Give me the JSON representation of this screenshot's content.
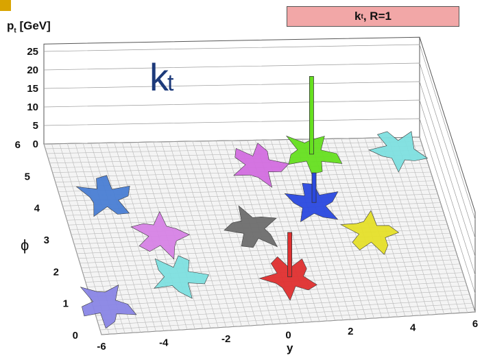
{
  "chart_data": {
    "type": "lego",
    "title_text": "k",
    "title_sub": "t",
    "title_suffix": ", R=1",
    "annotation_main": "k",
    "annotation_sub": "t",
    "zlabel": "p",
    "zlabel_sub": "t",
    "zlabel_unit": " [GeV]",
    "xlabel": "y",
    "ylabel": "ϕ",
    "xlim": [
      -6,
      6
    ],
    "ylim": [
      0,
      6
    ],
    "zlim": [
      0,
      27
    ],
    "x_ticks": [
      "-6",
      "-4",
      "-2",
      "0",
      "2",
      "4",
      "6"
    ],
    "y_ticks": [
      "0",
      "1",
      "2",
      "3",
      "4",
      "5",
      "6"
    ],
    "z_ticks": [
      "0",
      "5",
      "10",
      "15",
      "20",
      "25"
    ],
    "jets": [
      {
        "color": "#4a7fd4",
        "y": -4.5,
        "phi": 4.3,
        "pt": 1
      },
      {
        "color": "#d783e6",
        "y": -3.2,
        "phi": 3.0,
        "pt": 1
      },
      {
        "color": "#7fe0e0",
        "y": -3.0,
        "phi": 1.7,
        "pt": 1
      },
      {
        "color": "#8a86e6",
        "y": -5.6,
        "phi": 0.9,
        "pt": 1
      },
      {
        "color": "#e03030",
        "y": 0.5,
        "phi": 1.5,
        "pt": 12
      },
      {
        "color": "#6e6e6e",
        "y": -0.2,
        "phi": 3.1,
        "pt": 1
      },
      {
        "color": "#2a49e0",
        "y": 2.0,
        "phi": 3.9,
        "pt": 8
      },
      {
        "color": "#e6e02a",
        "y": 3.5,
        "phi": 2.8,
        "pt": 1
      },
      {
        "color": "#d36ee0",
        "y": 0.6,
        "phi": 5.2,
        "pt": 1
      },
      {
        "color": "#66e020",
        "y": 2.4,
        "phi": 5.5,
        "pt": 21
      },
      {
        "color": "#7fe0e0",
        "y": 5.2,
        "phi": 5.6,
        "pt": 1
      }
    ]
  }
}
